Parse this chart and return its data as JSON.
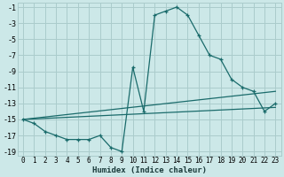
{
  "xlabel": "Humidex (Indice chaleur)",
  "bg_color": "#cce8e8",
  "grid_color": "#aacccc",
  "line_color": "#1a6b6b",
  "xlim": [
    -0.5,
    23.5
  ],
  "ylim": [
    -19.5,
    -0.5
  ],
  "xticks": [
    0,
    1,
    2,
    3,
    4,
    5,
    6,
    7,
    8,
    9,
    10,
    11,
    12,
    13,
    14,
    15,
    16,
    17,
    18,
    19,
    20,
    21,
    22,
    23
  ],
  "yticks": [
    -1,
    -3,
    -5,
    -7,
    -9,
    -11,
    -13,
    -15,
    -17,
    -19
  ],
  "main_x": [
    0,
    1,
    2,
    3,
    4,
    5,
    6,
    7,
    8,
    9,
    10,
    11,
    12,
    13,
    14,
    15,
    16,
    17,
    18,
    19,
    20,
    21,
    22,
    23
  ],
  "main_y": [
    -15,
    -15.5,
    -16.5,
    -17,
    -17.5,
    -17.5,
    -17.5,
    -17,
    -18.5,
    -19,
    -8.5,
    -14,
    -2,
    -1.5,
    -1,
    -2,
    -4.5,
    -7,
    -7.5,
    -10,
    -11,
    -11.5,
    -14,
    -13
  ],
  "trend1_x": [
    0,
    23
  ],
  "trend1_y": [
    -15,
    -11.5
  ],
  "trend2_x": [
    0,
    23
  ],
  "trend2_y": [
    -15,
    -13.5
  ]
}
